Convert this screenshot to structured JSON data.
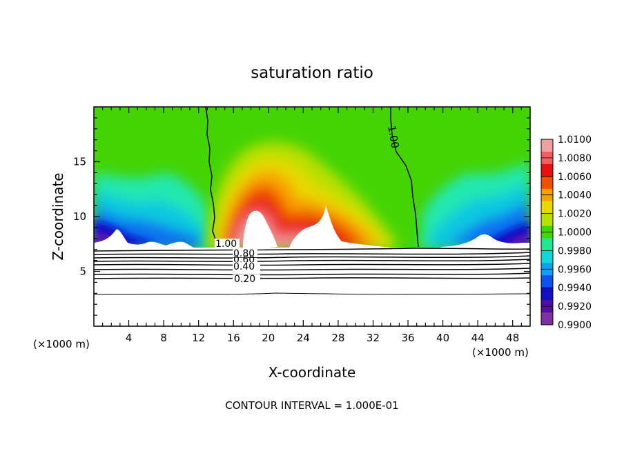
{
  "chart_data": {
    "type": "heatmap",
    "title": "saturation ratio",
    "xlabel": "X-coordinate",
    "ylabel": "Z-coordinate",
    "x_unit": "(×1000 m)",
    "xlim": [
      0,
      50
    ],
    "ylim": [
      0,
      20
    ],
    "x_ticks": [
      4,
      8,
      12,
      16,
      20,
      24,
      28,
      32,
      36,
      40,
      44,
      48
    ],
    "y_ticks": [
      5,
      10,
      15
    ],
    "footer": "CONTOUR INTERVAL = 1.000E-01",
    "colorbar": {
      "min": 0.99,
      "max": 1.01,
      "labels": [
        "1.0100",
        "1.0080",
        "1.0060",
        "1.0040",
        "1.0020",
        "1.0000",
        "0.9980",
        "0.9960",
        "0.9940",
        "0.9920",
        "0.9900"
      ],
      "colors": [
        "#f0a0a0",
        "#f06060",
        "#e81010",
        "#f05000",
        "#f8a000",
        "#e8d800",
        "#b8e000",
        "#40d800",
        "#20e890",
        "#10d8d8",
        "#10a0f0",
        "#1050f0",
        "#1010c0",
        "#5010a0",
        "#8030a0"
      ]
    },
    "contour_labels": [
      {
        "text": "1.00",
        "x": 13.8,
        "z": 7.8
      },
      {
        "text": "1.00",
        "x": 34.3,
        "z": 18.0
      },
      {
        "text": "0.80",
        "x": 15.5,
        "z": 7.2
      },
      {
        "text": "0.60",
        "x": 15.5,
        "z": 6.6
      },
      {
        "text": "0.40",
        "x": 15.5,
        "z": 5.6
      },
      {
        "text": "0.20",
        "x": 15.5,
        "z": 4.3
      }
    ]
  }
}
